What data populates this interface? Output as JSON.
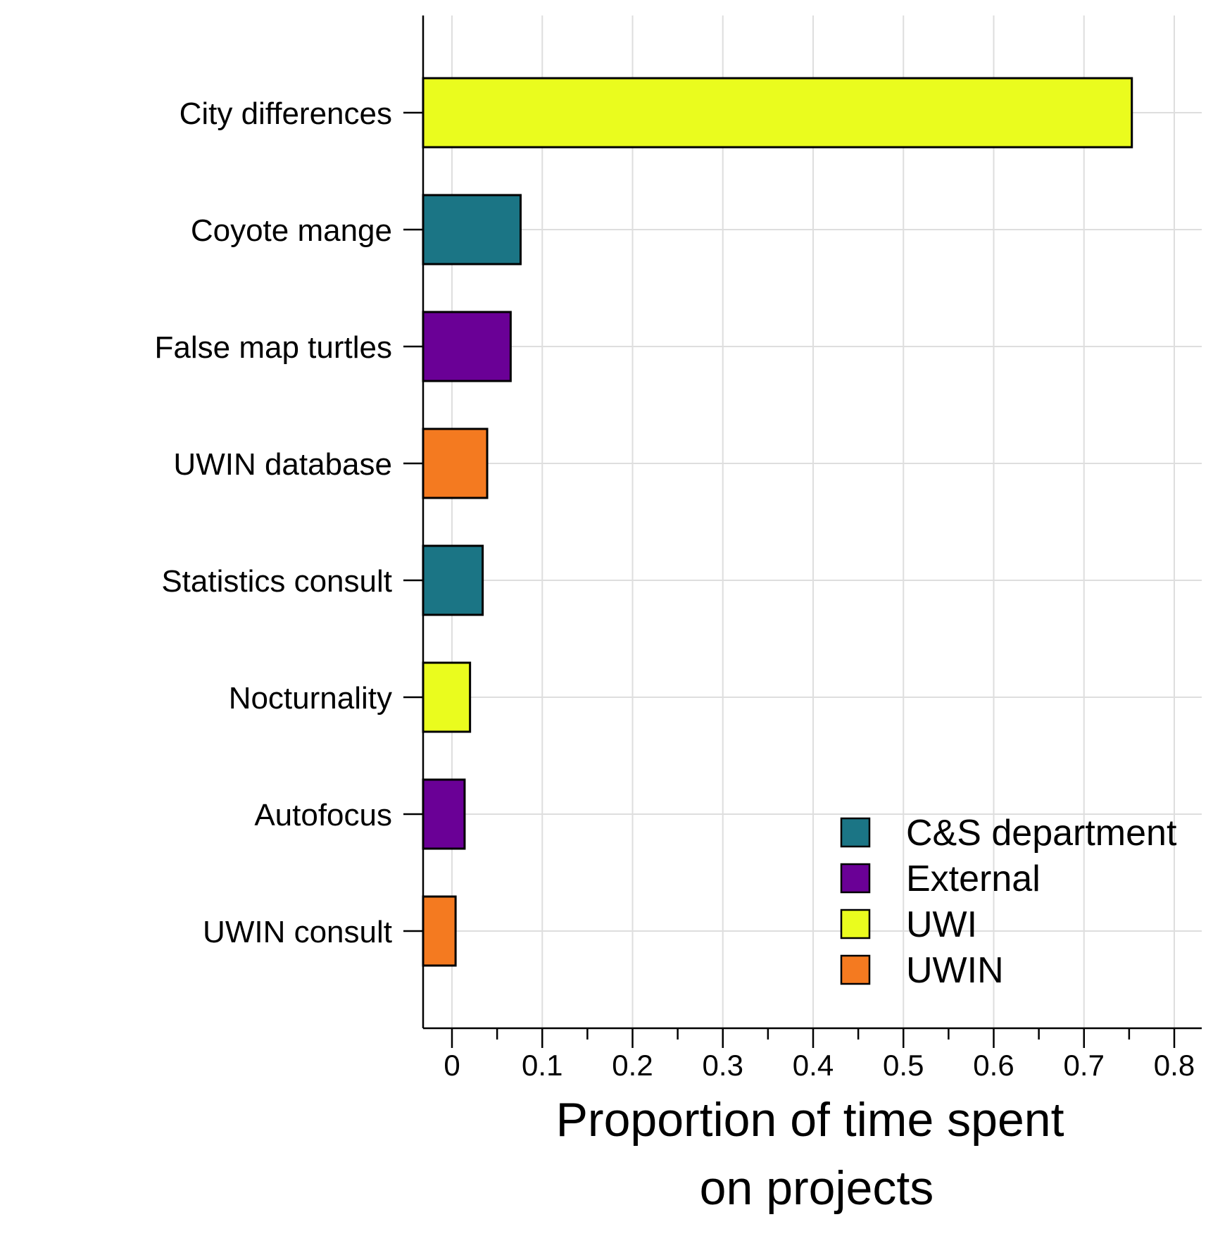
{
  "chart_data": {
    "type": "bar",
    "orientation": "horizontal",
    "title": "",
    "xlabel_lines": [
      "Proportion of time spent",
      "on projects"
    ],
    "ylabel": "",
    "xlim": [
      -0.032,
      0.83
    ],
    "x_ticks": [
      0,
      0.1,
      0.2,
      0.3,
      0.4,
      0.5,
      0.6,
      0.7,
      0.8
    ],
    "x_tick_labels": [
      "0",
      "0.1",
      "0.2",
      "0.3",
      "0.4",
      "0.5",
      "0.6",
      "0.7",
      "0.8"
    ],
    "x_minor_ticks": [
      0.05,
      0.15,
      0.25,
      0.35,
      0.45,
      0.55,
      0.65,
      0.75
    ],
    "grid": true,
    "legend_position": "bottom-right",
    "legend": [
      {
        "name": "C&S department",
        "color": "#1b7585"
      },
      {
        "name": "External",
        "color": "#6a0096"
      },
      {
        "name": "UWI",
        "color": "#eafc1e"
      },
      {
        "name": "UWIN",
        "color": "#f47a20"
      }
    ],
    "categories": [
      "City differences",
      "Coyote mange",
      "False map turtles",
      "UWIN database",
      "Statistics consult",
      "Nocturnality",
      "Autofocus",
      "UWIN consult"
    ],
    "values": [
      0.753,
      0.076,
      0.065,
      0.039,
      0.034,
      0.02,
      0.014,
      0.004
    ],
    "groups": [
      "UWI",
      "C&S department",
      "External",
      "UWIN",
      "C&S department",
      "UWI",
      "External",
      "UWIN"
    ]
  }
}
